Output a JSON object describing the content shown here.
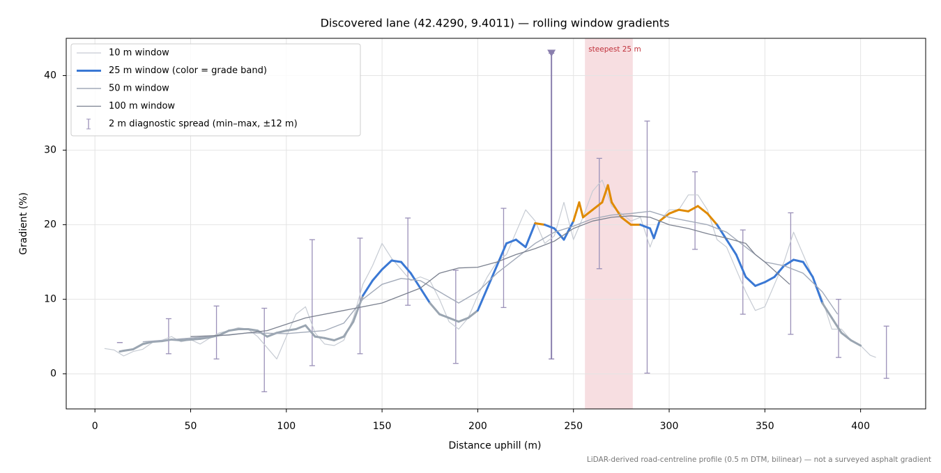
{
  "chart_data": {
    "type": "line",
    "title": "Discovered lane (42.4290, 9.4011) — rolling window gradients",
    "x_label": "Distance uphill (m)",
    "y_label": "Gradient (%)",
    "footnote": "LiDAR-derived road-centreline profile (0.5 m DTM, bilinear) — not a surveyed asphalt gradient",
    "xlim": [
      -15,
      434
    ],
    "ylim": [
      -4.7,
      45
    ],
    "xticks": [
      0,
      50,
      100,
      150,
      200,
      250,
      300,
      350,
      400
    ],
    "yticks": [
      0,
      10,
      20,
      30,
      40
    ],
    "grid": true,
    "legend": "upper left",
    "series": [
      {
        "name": "10 m window",
        "color": "#c6cbd3",
        "width": 1.2,
        "x": [
          5,
          10,
          15,
          20,
          25,
          30,
          35,
          40,
          45,
          50,
          55,
          60,
          65,
          70,
          75,
          80,
          85,
          90,
          95,
          100,
          105,
          110,
          115,
          120,
          125,
          130,
          135,
          140,
          145,
          150,
          155,
          160,
          165,
          170,
          175,
          180,
          185,
          190,
          195,
          200,
          205,
          210,
          215,
          220,
          225,
          230,
          235,
          240,
          245,
          250,
          255,
          260,
          265,
          270,
          275,
          280,
          285,
          290,
          295,
          300,
          305,
          310,
          315,
          320,
          325,
          330,
          335,
          340,
          345,
          350,
          355,
          360,
          365,
          370,
          375,
          380,
          385,
          390,
          395,
          400,
          405,
          408
        ],
        "values": [
          3.4,
          3.2,
          2.4,
          3.0,
          3.3,
          4.2,
          4.5,
          5.0,
          4.3,
          4.6,
          4.0,
          4.8,
          5.5,
          5.8,
          6.2,
          6.0,
          5.0,
          3.5,
          2.0,
          5.0,
          8.0,
          9.0,
          5.5,
          4.0,
          3.8,
          4.5,
          7.5,
          12.0,
          14.5,
          17.5,
          15.5,
          14.0,
          12.5,
          13.0,
          12.5,
          10.0,
          7.0,
          6.0,
          7.5,
          10.5,
          13.0,
          15.0,
          16.0,
          19.0,
          22.0,
          20.5,
          17.5,
          18.5,
          23.0,
          18.0,
          21.0,
          24.5,
          26.0,
          22.5,
          21.5,
          20.5,
          21.0,
          17.0,
          20.5,
          22.0,
          22.0,
          24.0,
          24.0,
          22.0,
          18.0,
          17.0,
          14.0,
          11.0,
          8.5,
          9.0,
          12.0,
          15.0,
          19.0,
          16.0,
          13.0,
          10.0,
          6.0,
          6.0,
          4.5,
          3.8,
          2.5,
          2.2
        ]
      },
      {
        "name": "25 m window (color = grade band)",
        "color": "#3a78d4",
        "width": 3,
        "band_colors": [
          {
            "below": 10,
            "color": "#9aa5b1"
          },
          {
            "below": 20,
            "color": "#3a78d4"
          },
          {
            "color": "#e08a00"
          }
        ],
        "x": [
          13,
          15,
          20,
          25,
          30,
          35,
          40,
          45,
          50,
          55,
          60,
          65,
          70,
          75,
          80,
          85,
          90,
          95,
          100,
          105,
          110,
          115,
          120,
          125,
          130,
          135,
          140,
          145,
          150,
          155,
          160,
          165,
          170,
          175,
          180,
          185,
          190,
          195,
          200,
          205,
          210,
          215,
          220,
          225,
          230,
          235,
          240,
          245,
          250,
          253,
          255,
          260,
          265,
          268,
          270,
          275,
          280,
          285,
          290,
          292,
          295,
          300,
          305,
          310,
          315,
          320,
          325,
          330,
          335,
          340,
          345,
          350,
          355,
          360,
          365,
          370,
          375,
          380,
          385,
          390,
          395,
          400
        ],
        "values": [
          3.0,
          3.1,
          3.3,
          4.0,
          4.3,
          4.4,
          4.6,
          4.5,
          4.6,
          4.7,
          4.9,
          5.2,
          5.8,
          6.0,
          6.0,
          5.8,
          5.0,
          5.5,
          5.8,
          6.0,
          6.5,
          5.0,
          4.8,
          4.5,
          5.0,
          7.0,
          10.5,
          12.5,
          14.0,
          15.2,
          15.0,
          13.5,
          11.5,
          9.5,
          8.0,
          7.5,
          7.0,
          7.5,
          8.5,
          11.5,
          14.5,
          17.5,
          18.0,
          17.0,
          20.2,
          20.0,
          19.5,
          18.0,
          20.5,
          23.0,
          21.0,
          22.0,
          23.0,
          25.3,
          23.0,
          21.0,
          20.0,
          20.0,
          19.5,
          18.2,
          20.5,
          21.5,
          22.0,
          21.8,
          22.5,
          21.5,
          20.0,
          18.0,
          16.0,
          13.0,
          11.8,
          12.3,
          13.0,
          14.5,
          15.3,
          15.0,
          13.0,
          9.5,
          7.5,
          5.5,
          4.5,
          3.8
        ]
      },
      {
        "name": "50 m window",
        "color": "#a2aab9",
        "width": 1.4,
        "x": [
          25,
          40,
          60,
          80,
          100,
          120,
          130,
          140,
          150,
          160,
          170,
          180,
          190,
          200,
          210,
          220,
          230,
          240,
          250,
          260,
          270,
          280,
          290,
          300,
          310,
          320,
          330,
          340,
          350,
          360,
          370,
          380,
          388
        ],
        "values": [
          4.3,
          4.6,
          5.0,
          5.5,
          5.4,
          5.8,
          6.8,
          10.0,
          12.0,
          12.8,
          12.5,
          11.0,
          9.5,
          11.0,
          13.5,
          15.5,
          17.5,
          19.0,
          19.8,
          20.8,
          21.3,
          21.5,
          21.8,
          21.0,
          20.5,
          20.0,
          19.0,
          17.0,
          15.0,
          14.5,
          13.5,
          11.0,
          8.0
        ]
      },
      {
        "name": "100 m window",
        "color": "#7b818f",
        "width": 1.3,
        "x": [
          50,
          70,
          90,
          110,
          130,
          150,
          170,
          180,
          190,
          200,
          210,
          220,
          230,
          240,
          250,
          260,
          270,
          280,
          290,
          300,
          310,
          320,
          330,
          340,
          345,
          350,
          363
        ],
        "values": [
          5.0,
          5.2,
          5.8,
          7.5,
          8.5,
          9.5,
          11.5,
          13.5,
          14.2,
          14.3,
          15.0,
          16.0,
          16.8,
          17.8,
          19.5,
          20.5,
          21.0,
          21.2,
          21.0,
          20.0,
          19.5,
          18.8,
          18.2,
          17.5,
          16.0,
          15.0,
          12.0
        ]
      }
    ],
    "spread": {
      "name": "2 m diagnostic spread (min–max, ±12 m)",
      "color": "#9a90b8",
      "marker_color": "#8a7fae",
      "x": [
        13,
        38.5,
        63.5,
        88.5,
        113.5,
        138.5,
        163.5,
        188.5,
        213.5,
        238.5,
        263.5,
        288.5,
        313.5,
        338.5,
        363.5,
        388.5,
        413.5
      ],
      "min": [
        4.2,
        2.7,
        2.0,
        -2.4,
        1.1,
        2.7,
        9.2,
        1.4,
        8.9,
        2.0,
        14.1,
        0.1,
        16.7,
        8.0,
        5.3,
        2.2,
        -0.6
      ],
      "max": [
        4.2,
        7.4,
        9.1,
        8.8,
        18.0,
        18.2,
        20.9,
        13.9,
        22.2,
        43,
        28.9,
        33.9,
        27.1,
        19.3,
        21.6,
        10.0,
        6.4
      ],
      "marker": [
        false,
        false,
        false,
        false,
        false,
        false,
        false,
        false,
        false,
        true,
        false,
        false,
        false,
        false,
        false,
        false,
        false
      ]
    },
    "highlight": {
      "label": "steepest 25 m",
      "from": 256,
      "to": 281,
      "color": "#e8a0a8",
      "label_color": "#c0303a"
    }
  }
}
